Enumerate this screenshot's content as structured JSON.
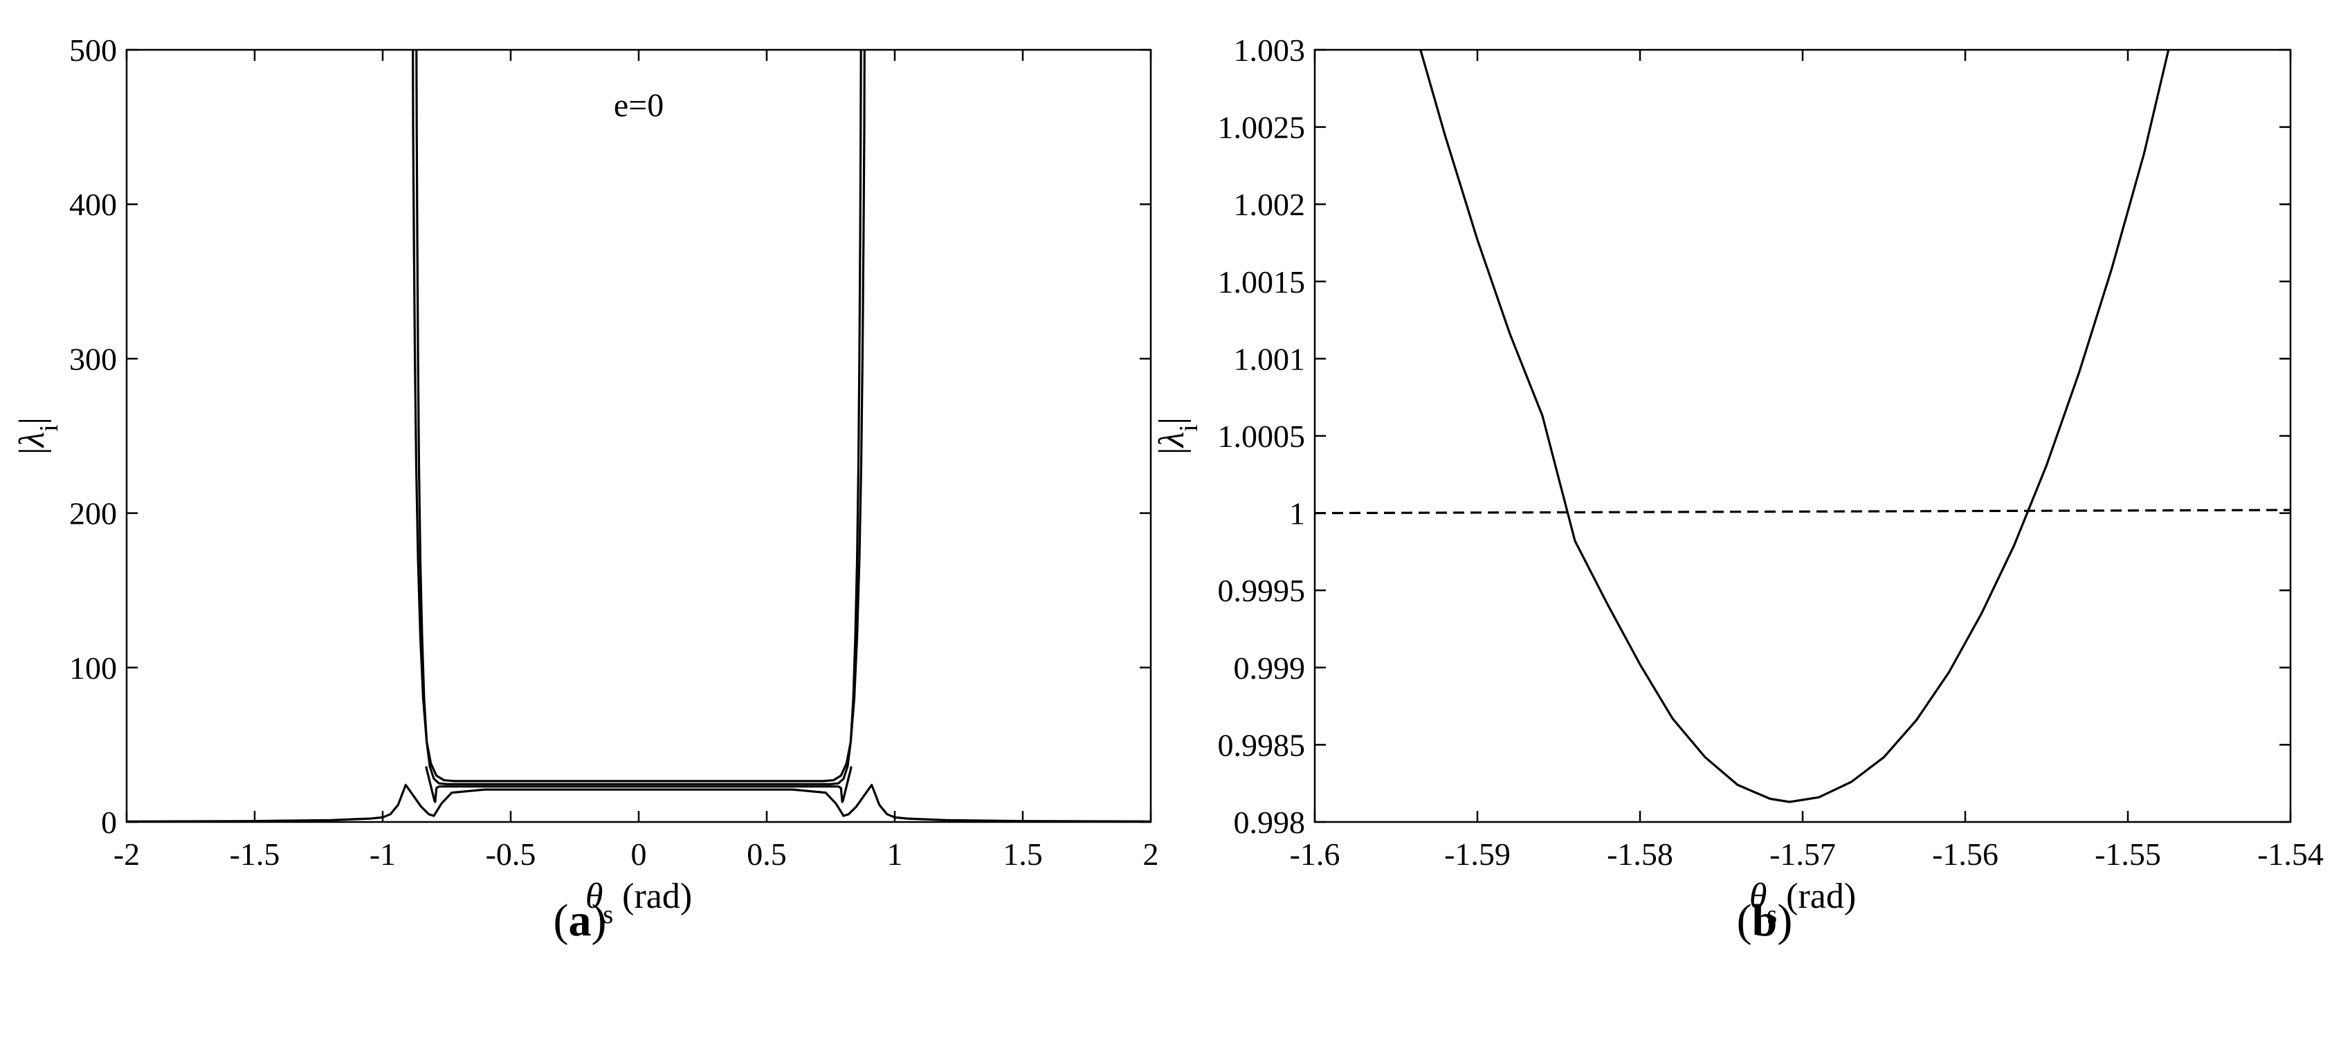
{
  "chart_data": [
    {
      "panel_label": "(a)",
      "caption_letter": "a",
      "type": "line",
      "annotation": "e=0",
      "xlabel_symbol": "θ",
      "xlabel_sub": "s",
      "xlabel_unit": "(rad)",
      "ylabel_symbol": "λ",
      "ylabel_sub": "i",
      "xlim": [
        -2,
        2
      ],
      "ylim": [
        0,
        500
      ],
      "xticks": [
        "-2",
        "-1.5",
        "-1",
        "-0.5",
        "0",
        "0.5",
        "1",
        "1.5",
        "2"
      ],
      "yticks": [
        "0",
        "100",
        "200",
        "300",
        "400",
        "500"
      ],
      "grid": false,
      "series": [
        {
          "style": "solid",
          "x": [
            -2.0,
            -1.5,
            -1.2,
            -1.05,
            -1.0,
            -0.97,
            -0.94,
            -0.91,
            -0.88,
            -0.85,
            -0.82,
            -0.8,
            -0.77,
            -0.73,
            -0.6,
            -0.3,
            0.0,
            0.3,
            0.6,
            0.73,
            0.77,
            0.8,
            0.82,
            0.85,
            0.88,
            0.91,
            0.94,
            0.97,
            1.0,
            1.05,
            1.2,
            1.5,
            2.0
          ],
          "y": [
            0.3,
            0.6,
            1.2,
            2.2,
            3,
            5,
            11,
            24,
            17,
            10,
            5,
            4,
            12,
            19,
            21,
            21,
            21,
            21,
            21,
            19,
            12,
            4,
            5,
            10,
            17,
            24,
            11,
            5,
            3,
            2.2,
            1.2,
            0.6,
            0.3
          ]
        },
        {
          "style": "solid",
          "x": [
            -0.868,
            -0.867,
            -0.865,
            -0.862,
            -0.858,
            -0.853,
            -0.846,
            -0.838,
            -0.828,
            -0.816,
            -0.8,
            -0.78,
            -0.75,
            -0.6,
            -0.3,
            0.0,
            0.3,
            0.6,
            0.75,
            0.78,
            0.8,
            0.816,
            0.828,
            0.838,
            0.846,
            0.853,
            0.858,
            0.862,
            0.865,
            0.867,
            0.868
          ],
          "y": [
            500,
            450,
            380,
            300,
            230,
            170,
            120,
            80,
            52,
            36,
            28,
            25,
            24.5,
            24.5,
            24.5,
            24.5,
            24.5,
            24.5,
            24.5,
            25,
            28,
            36,
            52,
            80,
            120,
            170,
            230,
            300,
            380,
            450,
            500
          ]
        },
        {
          "style": "solid",
          "x": [
            -0.882,
            -0.881,
            -0.878,
            -0.874,
            -0.869,
            -0.862,
            -0.853,
            -0.842,
            -0.828,
            -0.812,
            -0.79,
            -0.76,
            -0.72,
            -0.5,
            0.0,
            0.5,
            0.72,
            0.76,
            0.79,
            0.812,
            0.828,
            0.842,
            0.853,
            0.862,
            0.869,
            0.874,
            0.878,
            0.881,
            0.882
          ],
          "y": [
            500,
            450,
            380,
            300,
            230,
            170,
            120,
            80,
            52,
            38,
            30,
            27,
            26.5,
            26.5,
            26.5,
            26.5,
            26.5,
            27,
            30,
            38,
            52,
            80,
            120,
            170,
            230,
            300,
            380,
            450,
            500
          ]
        },
        {
          "style": "solid",
          "x": [
            -0.83,
            -0.828,
            -0.825,
            -0.822,
            -0.819,
            -0.816,
            -0.813,
            -0.81,
            -0.807,
            -0.804,
            -0.801,
            -0.798,
            -0.795,
            -0.79,
            -0.78,
            -0.5,
            0.0,
            0.5,
            0.78,
            0.79,
            0.795,
            0.798,
            0.801,
            0.804,
            0.807,
            0.81,
            0.813,
            0.816,
            0.819,
            0.822,
            0.825,
            0.828,
            0.83
          ],
          "y": [
            36,
            34,
            32,
            30,
            28,
            26,
            24,
            22,
            20,
            18,
            16,
            14,
            13,
            22,
            23,
            23,
            23,
            23,
            23,
            22,
            13,
            14,
            16,
            18,
            20,
            22,
            24,
            26,
            28,
            30,
            32,
            34,
            36
          ]
        }
      ]
    },
    {
      "panel_label": "(b)",
      "caption_letter": "b",
      "type": "line",
      "xlabel_symbol": "θ",
      "xlabel_sub": "s",
      "xlabel_unit": "(rad)",
      "ylabel_symbol": "λ",
      "ylabel_sub": "i",
      "xlim": [
        -1.6,
        -1.54
      ],
      "ylim": [
        0.998,
        1.003
      ],
      "xticks": [
        "-1.6",
        "-1.59",
        "-1.58",
        "-1.57",
        "-1.56",
        "-1.55",
        "-1.54"
      ],
      "yticks": [
        "0.998",
        "0.9985",
        "0.999",
        "0.9995",
        "1",
        "1.0005",
        "1.001",
        "1.0015",
        "1.002",
        "1.0025",
        "1.003"
      ],
      "grid": false,
      "series": [
        {
          "style": "solid",
          "x": [
            -1.5935,
            -1.592,
            -1.59,
            -1.588,
            -1.586,
            -1.584,
            -1.582,
            -1.58,
            -1.578,
            -1.576,
            -1.574,
            -1.572,
            -1.5708,
            -1.569,
            -1.567,
            -1.565,
            -1.563,
            -1.561,
            -1.559,
            -1.557,
            -1.555,
            -1.553,
            -1.551,
            -1.549,
            -1.5475
          ],
          "y": [
            1.003,
            1.00245,
            1.00177,
            1.00116,
            1.00063,
            0.99982,
            0.99941,
            0.99902,
            0.99867,
            0.99842,
            0.99824,
            0.99815,
            0.99813,
            0.99816,
            0.99826,
            0.99842,
            0.99866,
            0.99897,
            0.99935,
            0.99979,
            1.00031,
            1.00091,
            1.00158,
            1.00233,
            1.003
          ]
        },
        {
          "style": "dashed",
          "x": [
            -1.6,
            -1.54
          ],
          "y": [
            1.0,
            1.00002
          ]
        }
      ]
    }
  ]
}
